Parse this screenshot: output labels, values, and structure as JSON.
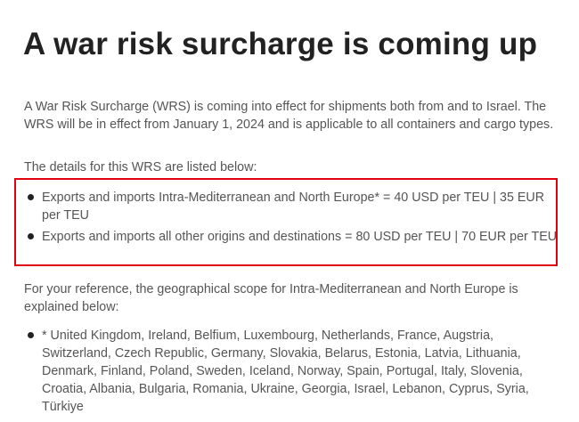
{
  "title": "A war risk surcharge is coming up",
  "intro": "A War Risk Surcharge (WRS) is coming into effect for shipments both from and to Israel. The WRS will be in effect from January 1, 2024 and is applicable to all containers and cargo types.",
  "details_heading": "The details for this WRS are listed below:",
  "details": [
    "Exports and imports Intra-Mediterranean and North Europe* = 40 USD per TEU | 35 EUR per TEU",
    "Exports and imports all other origins and destinations = 80 USD per TEU | 70 EUR per TEU"
  ],
  "highlight_color": "#e0000f",
  "reference_text": "For your reference, the geographical scope for Intra-Mediterranean and North Europe is explained below:",
  "scope": [
    "* United Kingdom, Ireland, Belfium, Luxembourg, Netherlands, France, Augstria, Switzerland, Czech Republic, Germany, Slovakia, Belarus, Estonia, Latvia, Lithuania, Denmark, Finland, Poland, Sweden, Iceland, Norway, Spain, Portugal, Italy, Slovenia, Croatia, Albania, Bulgaria, Romania, Ukraine, Georgia, Israel, Lebanon, Cyprus, Syria, Türkiye"
  ]
}
